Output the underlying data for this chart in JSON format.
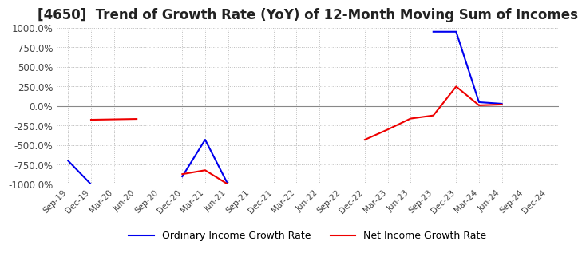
{
  "title": "[4650]  Trend of Growth Rate (YoY) of 12-Month Moving Sum of Incomes",
  "title_fontsize": 12,
  "ylim": [
    -1000,
    1000
  ],
  "yticks": [
    1000,
    750,
    500,
    250,
    0,
    -250,
    -500,
    -750,
    -1000
  ],
  "background_color": "#ffffff",
  "grid_color": "#bbbbbb",
  "ordinary_color": "#0000ee",
  "net_color": "#ee0000",
  "legend_ordinary": "Ordinary Income Growth Rate",
  "legend_net": "Net Income Growth Rate",
  "x_labels": [
    "Sep-19",
    "Dec-19",
    "Mar-20",
    "Jun-20",
    "Sep-20",
    "Dec-20",
    "Mar-21",
    "Jun-21",
    "Sep-21",
    "Dec-21",
    "Mar-22",
    "Jun-22",
    "Sep-22",
    "Dec-22",
    "Mar-23",
    "Jun-23",
    "Sep-23",
    "Dec-23",
    "Mar-24",
    "Jun-24",
    "Sep-24",
    "Dec-24"
  ],
  "ordinary_segments": [
    {
      "x": [
        0,
        1
      ],
      "y": [
        -700,
        -1000
      ]
    },
    {
      "x": [
        5,
        6,
        7
      ],
      "y": [
        -900,
        -430,
        -1000
      ]
    },
    {
      "x": [
        16,
        17,
        18,
        19
      ],
      "y": [
        950,
        950,
        50,
        30
      ]
    }
  ],
  "net_segments": [
    {
      "x": [
        1,
        2,
        3
      ],
      "y": [
        -175,
        -170,
        -165
      ]
    },
    {
      "x": [
        5,
        6,
        7
      ],
      "y": [
        -870,
        -820,
        -1000
      ]
    },
    {
      "x": [
        13,
        14,
        15,
        16,
        17,
        18,
        19
      ],
      "y": [
        -430,
        -300,
        -160,
        -120,
        250,
        10,
        20
      ]
    }
  ]
}
